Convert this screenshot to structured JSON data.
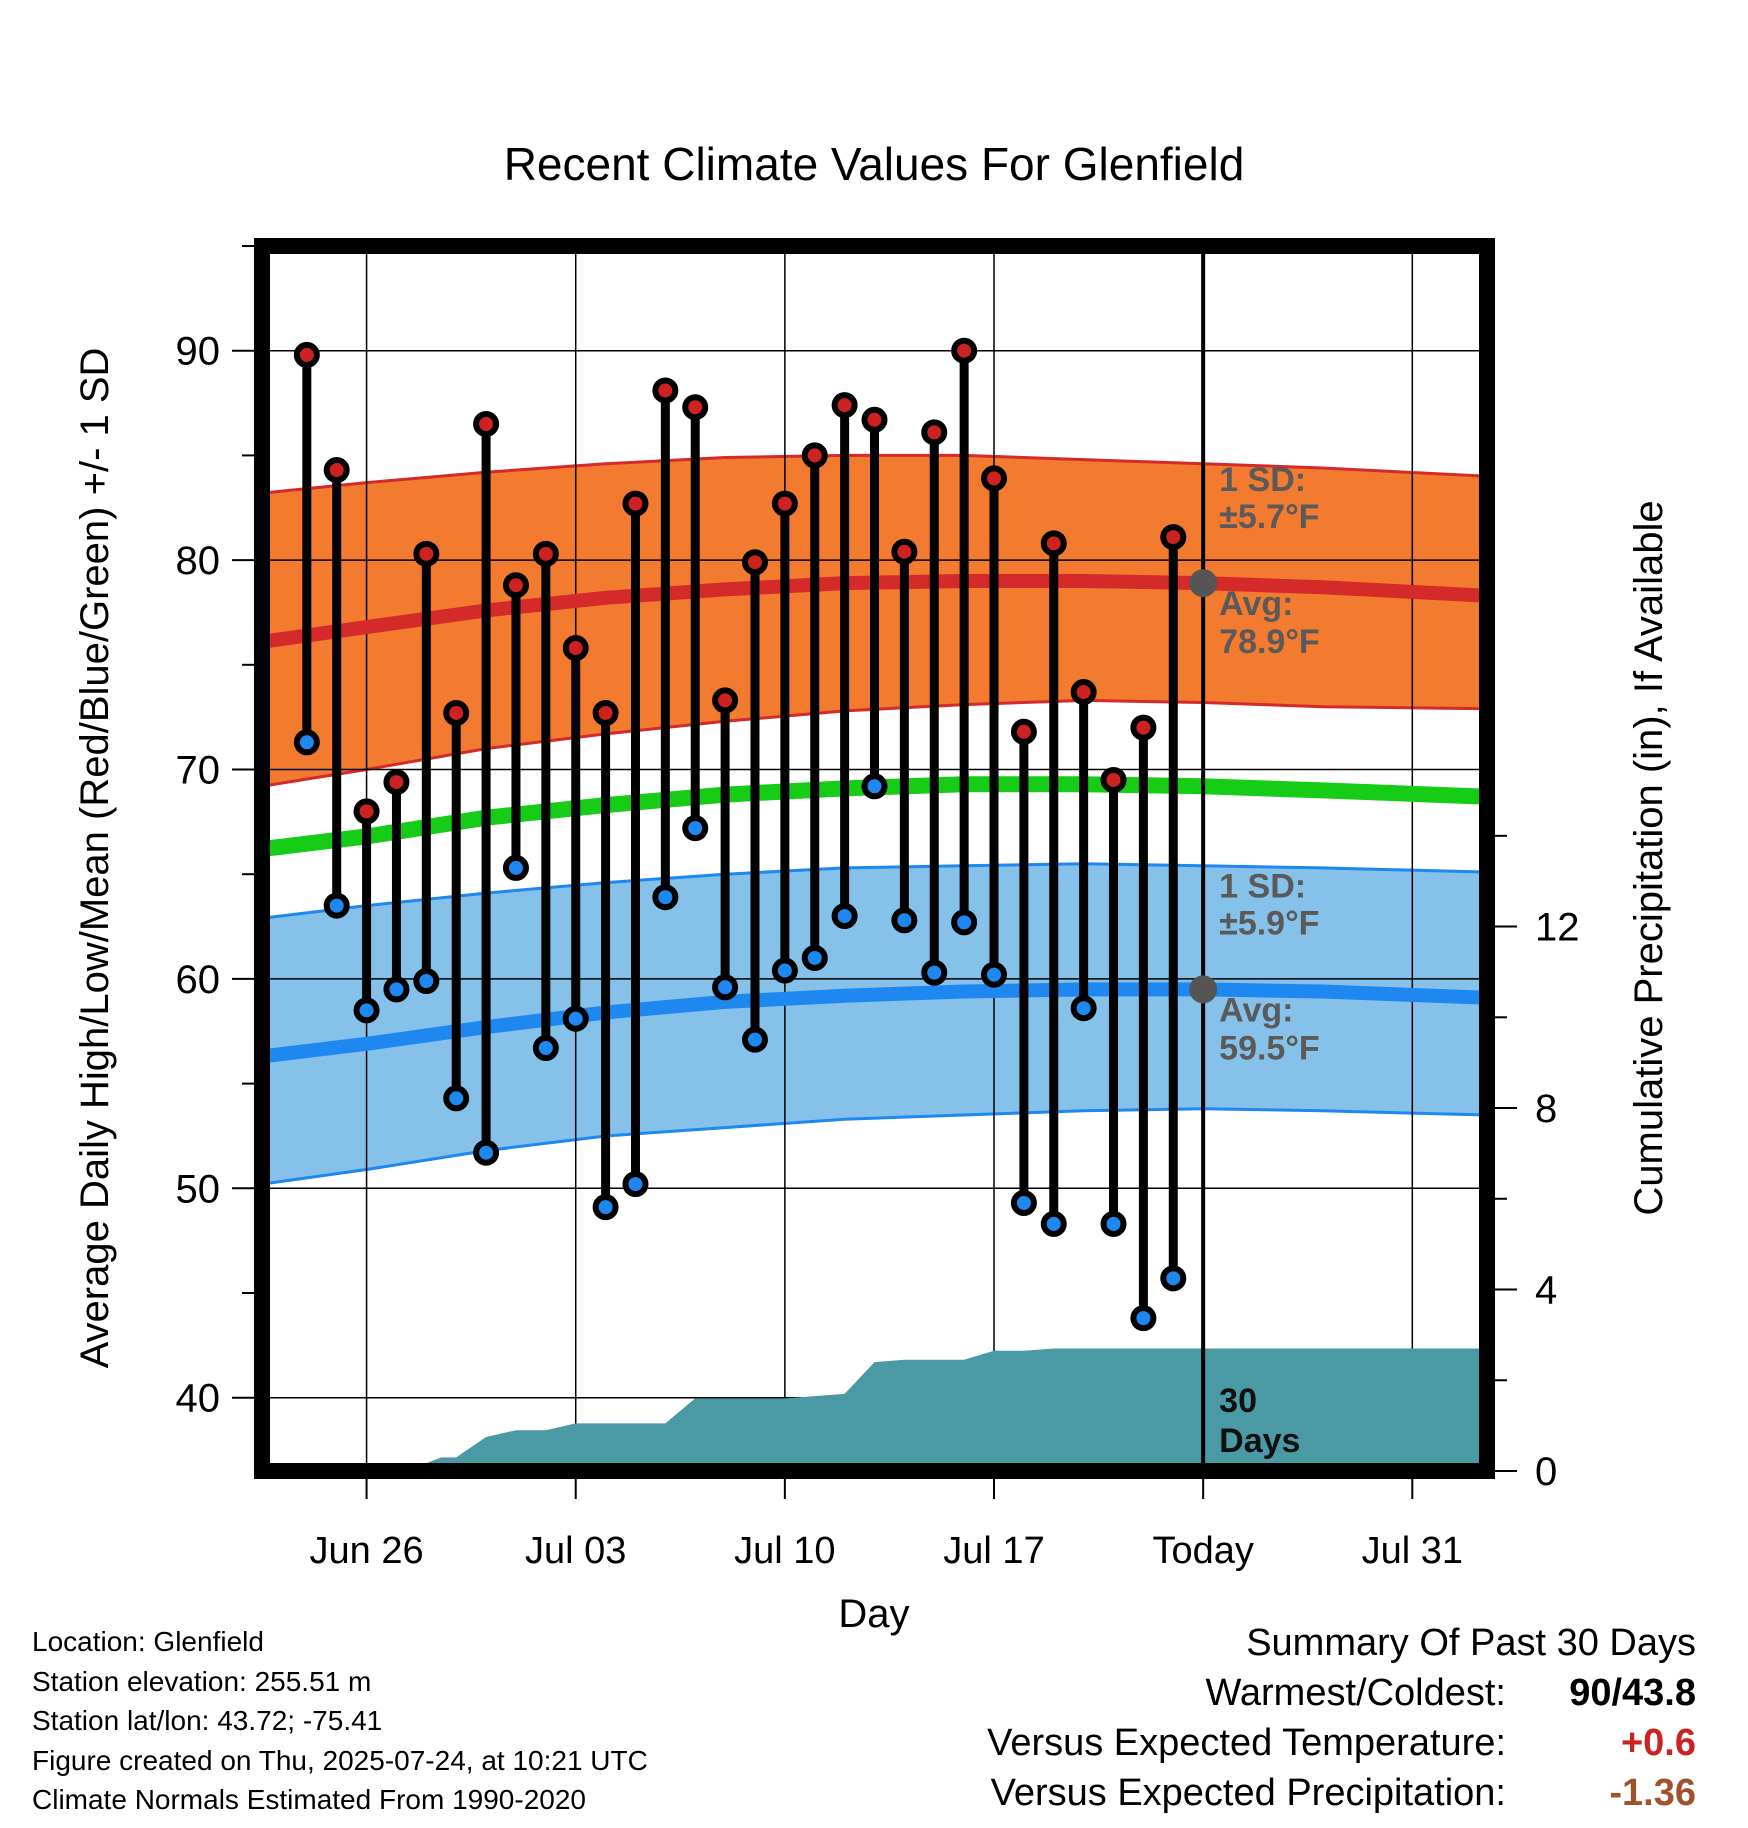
{
  "chart_data": {
    "type": "line",
    "title": "Recent Climate Values For Glenfield",
    "xlabel": "Day",
    "ylabel": "Average Daily High/Low/Mean (Red/Blue/Green) +/- 1 SD",
    "y2label": "Cumulative Precipitation (in), If Available",
    "ylim": [
      36.5,
      95
    ],
    "y2lim": [
      0,
      27
    ],
    "y_ticks": [
      40,
      50,
      60,
      70,
      80,
      90
    ],
    "y2_ticks": [
      0,
      4,
      8,
      12
    ],
    "x_tick_labels": [
      "Jun 26",
      "Jul 03",
      "Jul 10",
      "Jul 17",
      "Today",
      "Jul 31"
    ],
    "x_tick_days": [
      -28,
      -21,
      -14,
      -7,
      0,
      7
    ],
    "xlim": [
      -31.5,
      9.5
    ],
    "today_day": 0,
    "today_label_days": "30\nDays",
    "high_normal": {
      "name": "Avg High",
      "color": "#d42a2a",
      "band_color": "#f27b2f",
      "x": [
        -31.5,
        -28,
        -24,
        -20,
        -16,
        -12,
        -8,
        -4,
        0,
        4,
        9.5
      ],
      "mean": [
        76.1,
        76.8,
        77.6,
        78.2,
        78.6,
        78.9,
        79.0,
        79.0,
        78.9,
        78.7,
        78.3
      ],
      "upper": [
        83.2,
        83.7,
        84.2,
        84.6,
        84.9,
        85.0,
        85.0,
        84.8,
        84.6,
        84.4,
        84.0
      ],
      "lower": [
        69.2,
        70.0,
        71.0,
        71.7,
        72.3,
        72.8,
        73.1,
        73.3,
        73.2,
        73.0,
        72.9
      ],
      "sd_label": "1 SD:",
      "sd_value": "±5.7°F",
      "avg_label": "Avg:",
      "avg_value": "78.9°F"
    },
    "low_normal": {
      "name": "Avg Low",
      "color": "#1e88f0",
      "band_color": "#85c1e8",
      "x": [
        -31.5,
        -28,
        -24,
        -20,
        -16,
        -12,
        -8,
        -4,
        0,
        4,
        9.5
      ],
      "mean": [
        56.3,
        56.9,
        57.7,
        58.4,
        58.9,
        59.2,
        59.4,
        59.5,
        59.5,
        59.4,
        59.1
      ],
      "upper": [
        62.9,
        63.5,
        64.1,
        64.6,
        65.0,
        65.3,
        65.4,
        65.5,
        65.4,
        65.3,
        65.1
      ],
      "lower": [
        50.2,
        50.9,
        51.8,
        52.5,
        52.9,
        53.3,
        53.5,
        53.7,
        53.8,
        53.7,
        53.5
      ],
      "sd_label": "1 SD:",
      "sd_value": "±5.9°F",
      "avg_label": "Avg:",
      "avg_value": "59.5°F"
    },
    "mean_normal": {
      "name": "Avg Mean",
      "color": "#17cc17",
      "x": [
        -31.5,
        -28,
        -24,
        -20,
        -16,
        -12,
        -8,
        -4,
        0,
        4,
        9.5
      ],
      "y": [
        66.2,
        66.8,
        67.7,
        68.3,
        68.8,
        69.1,
        69.3,
        69.3,
        69.2,
        69.0,
        68.7
      ]
    },
    "daily": {
      "day": [
        -30,
        -29,
        -28,
        -27,
        -26,
        -25,
        -24,
        -23,
        -22,
        -21,
        -20,
        -19,
        -18,
        -17,
        -16,
        -15,
        -14,
        -13,
        -12,
        -11,
        -10,
        -9,
        -8,
        -7,
        -6,
        -5,
        -4,
        -3,
        -2,
        -1
      ],
      "high": [
        89.8,
        84.3,
        68.0,
        69.4,
        80.3,
        72.7,
        86.5,
        78.8,
        80.3,
        75.8,
        72.7,
        82.7,
        88.1,
        87.3,
        73.3,
        79.9,
        82.7,
        85.0,
        87.4,
        86.7,
        80.4,
        86.1,
        90.0,
        83.9,
        71.8,
        80.8,
        73.7,
        69.5,
        72.0,
        81.1
      ],
      "low": [
        71.3,
        63.5,
        58.5,
        59.5,
        59.9,
        54.3,
        51.7,
        65.3,
        56.7,
        58.1,
        49.1,
        50.2,
        63.9,
        67.2,
        59.6,
        57.1,
        60.4,
        61.0,
        63.0,
        69.2,
        62.8,
        60.3,
        62.7,
        60.2,
        49.3,
        48.3,
        58.6,
        48.3,
        43.8,
        45.7
      ],
      "high_color": "#cc2222",
      "low_color": "#1e88f0"
    },
    "precip": {
      "color": "#4a9aa5",
      "x": [
        -31.5,
        -27.5,
        -26.5,
        -25.5,
        -25,
        -24,
        -23,
        -22,
        -21,
        -20,
        -19,
        -18,
        -17,
        -16,
        -15,
        -14,
        -13,
        -12,
        -11,
        -10,
        -9,
        -8,
        -7,
        -6,
        -5,
        -4,
        -3,
        -2,
        -1,
        0,
        9.5
      ],
      "y": [
        0,
        0,
        0.05,
        0.3,
        0.3,
        0.75,
        0.9,
        0.9,
        1.05,
        1.05,
        1.05,
        1.05,
        1.6,
        1.6,
        1.6,
        1.6,
        1.65,
        1.7,
        2.4,
        2.45,
        2.45,
        2.45,
        2.65,
        2.65,
        2.7,
        2.7,
        2.7,
        2.7,
        2.7,
        2.7,
        2.7
      ]
    }
  },
  "footer": {
    "location": "Location: Glenfield",
    "elevation": "Station elevation: 255.51 m",
    "latlon": "Station lat/lon: 43.72; -75.41",
    "created": "Figure created on Thu, 2025-07-24, at 10:21 UTC",
    "normals": "Climate Normals Estimated From 1990-2020"
  },
  "summary": {
    "title": "Summary Of Past 30 Days",
    "warmest_label": "Warmest/Coldest:",
    "warmest_value": "90/43.8",
    "temp_label": "Versus Expected Temperature:",
    "temp_value": "+0.6",
    "temp_color": "#cc2222",
    "precip_label": "Versus Expected Precipitation:",
    "precip_value": "-1.36",
    "precip_color": "#a0522d"
  }
}
